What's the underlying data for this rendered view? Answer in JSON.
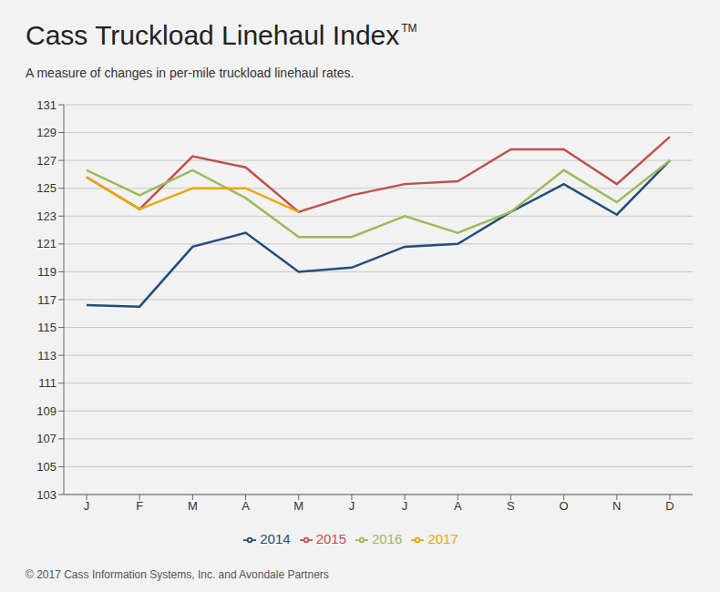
{
  "chart_data": {
    "type": "line",
    "title": "Cass Truckload Linehaul Index",
    "subtitle": "A measure of changes in per-mile truckload linehaul rates.",
    "annotations": [
      "TM",
      "© 2017 Cass Information Systems, Inc. and Avondale Partners"
    ],
    "categories": [
      "J",
      "F",
      "M",
      "A",
      "M",
      "J",
      "J",
      "A",
      "S",
      "O",
      "N",
      "D"
    ],
    "series": [
      {
        "name": "2014",
        "color": "#1f4e79",
        "values": [
          116.6,
          116.5,
          120.8,
          121.8,
          119.0,
          119.3,
          120.8,
          121.0,
          123.3,
          125.3,
          123.1,
          127.0
        ]
      },
      {
        "name": "2015",
        "color": "#c0504d",
        "values": [
          125.8,
          123.5,
          127.3,
          126.5,
          123.3,
          124.5,
          125.3,
          125.5,
          127.8,
          127.8,
          125.3,
          128.7
        ]
      },
      {
        "name": "2016",
        "color": "#9bbb59",
        "values": [
          126.3,
          124.5,
          126.3,
          124.3,
          121.5,
          121.5,
          123.0,
          121.8,
          123.3,
          126.3,
          124.0,
          127.0
        ]
      },
      {
        "name": "2017",
        "color": "#e8a800",
        "values": [
          125.8,
          123.5,
          125.0,
          125.0,
          123.3,
          null,
          null,
          null,
          null,
          null,
          null,
          null
        ]
      }
    ],
    "ylim": [
      103,
      131
    ],
    "yticks": [
      103,
      105,
      107,
      109,
      111,
      113,
      115,
      117,
      119,
      121,
      123,
      125,
      127,
      129,
      131
    ],
    "grid": true,
    "legend": "bottom"
  }
}
